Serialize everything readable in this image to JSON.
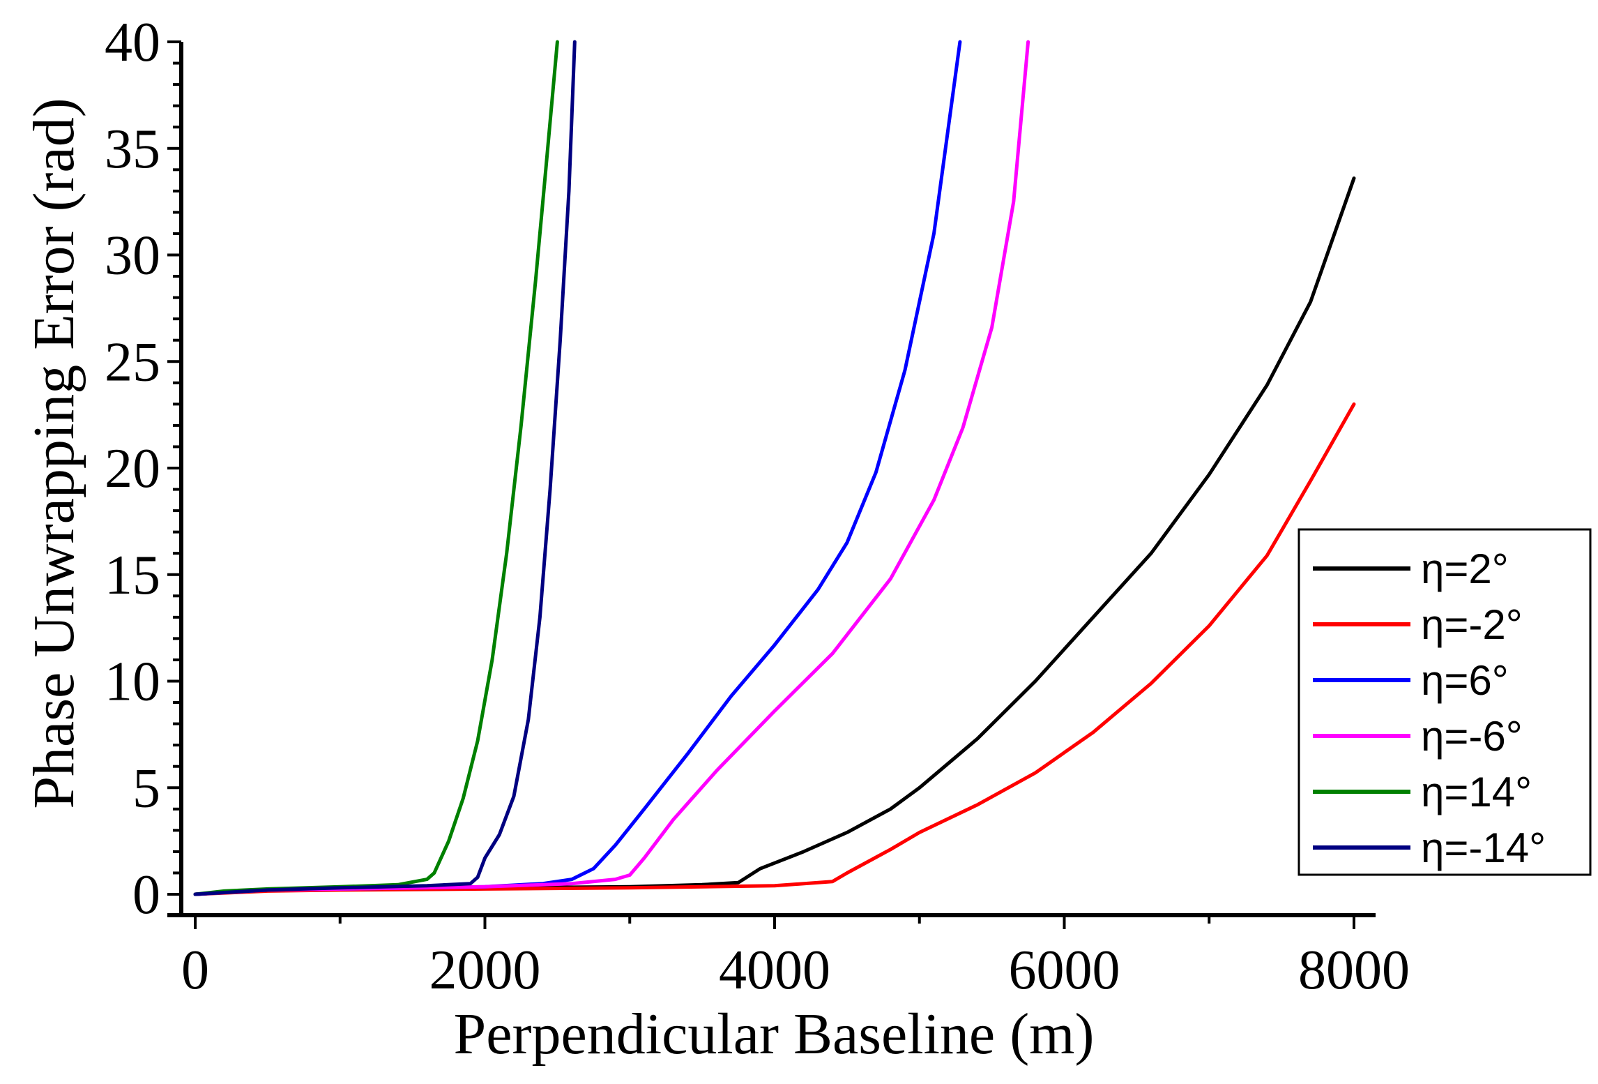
{
  "chart_data": {
    "type": "line",
    "xlabel": "Perpendicular Baseline (m)",
    "ylabel": "Phase Unwrapping Error (rad)",
    "xlim": [
      0,
      8000
    ],
    "ylim": [
      0,
      40
    ],
    "xticks": [
      0,
      2000,
      4000,
      6000,
      8000
    ],
    "yticks": [
      0,
      5,
      10,
      15,
      20,
      25,
      30,
      35,
      40
    ],
    "xtick_labels": [
      "0",
      "2000",
      "4000",
      "6000",
      "8000"
    ],
    "ytick_labels": [
      "0",
      "5",
      "10",
      "15",
      "20",
      "25",
      "30",
      "35",
      "40"
    ],
    "grid": false,
    "legend_position": "bottom-right",
    "series": [
      {
        "name": "η=2°",
        "color": "#000000",
        "points": [
          [
            0,
            0
          ],
          [
            500,
            0.2
          ],
          [
            1000,
            0.25
          ],
          [
            2000,
            0.3
          ],
          [
            3000,
            0.35
          ],
          [
            3500,
            0.45
          ],
          [
            3750,
            0.55
          ],
          [
            3900,
            1.2
          ],
          [
            4200,
            2.0
          ],
          [
            4500,
            2.9
          ],
          [
            4800,
            4.0
          ],
          [
            5000,
            5.0
          ],
          [
            5400,
            7.3
          ],
          [
            5800,
            10.0
          ],
          [
            6200,
            13.0
          ],
          [
            6600,
            16.0
          ],
          [
            7000,
            19.7
          ],
          [
            7400,
            23.9
          ],
          [
            7700,
            27.8
          ],
          [
            8000,
            33.6
          ]
        ]
      },
      {
        "name": "η=-2°",
        "color": "#ff0000",
        "points": [
          [
            0,
            0
          ],
          [
            500,
            0.15
          ],
          [
            1000,
            0.2
          ],
          [
            2000,
            0.25
          ],
          [
            3000,
            0.3
          ],
          [
            4000,
            0.4
          ],
          [
            4400,
            0.6
          ],
          [
            4500,
            1.0
          ],
          [
            4800,
            2.1
          ],
          [
            5000,
            2.9
          ],
          [
            5400,
            4.2
          ],
          [
            5800,
            5.7
          ],
          [
            6200,
            7.6
          ],
          [
            6600,
            9.9
          ],
          [
            7000,
            12.6
          ],
          [
            7400,
            15.9
          ],
          [
            7700,
            19.4
          ],
          [
            8000,
            23.0
          ]
        ]
      },
      {
        "name": "η=6°",
        "color": "#0000ff",
        "points": [
          [
            0,
            0
          ],
          [
            500,
            0.2
          ],
          [
            1000,
            0.25
          ],
          [
            2000,
            0.35
          ],
          [
            2400,
            0.5
          ],
          [
            2600,
            0.7
          ],
          [
            2750,
            1.2
          ],
          [
            2900,
            2.3
          ],
          [
            3100,
            4.0
          ],
          [
            3400,
            6.6
          ],
          [
            3700,
            9.3
          ],
          [
            4000,
            11.7
          ],
          [
            4300,
            14.3
          ],
          [
            4500,
            16.5
          ],
          [
            4700,
            19.8
          ],
          [
            4900,
            24.6
          ],
          [
            5100,
            31.0
          ],
          [
            5280,
            40.0
          ]
        ]
      },
      {
        "name": "η=-6°",
        "color": "#ff00ff",
        "points": [
          [
            0,
            0
          ],
          [
            500,
            0.2
          ],
          [
            1000,
            0.25
          ],
          [
            2000,
            0.35
          ],
          [
            2600,
            0.5
          ],
          [
            2900,
            0.7
          ],
          [
            3000,
            0.9
          ],
          [
            3100,
            1.7
          ],
          [
            3300,
            3.5
          ],
          [
            3600,
            5.8
          ],
          [
            4000,
            8.6
          ],
          [
            4400,
            11.3
          ],
          [
            4800,
            14.8
          ],
          [
            5100,
            18.5
          ],
          [
            5300,
            21.9
          ],
          [
            5500,
            26.6
          ],
          [
            5650,
            32.5
          ],
          [
            5750,
            40.0
          ]
        ]
      },
      {
        "name": "η=14°",
        "color": "#008000",
        "points": [
          [
            0,
            0
          ],
          [
            200,
            0.15
          ],
          [
            500,
            0.25
          ],
          [
            1000,
            0.35
          ],
          [
            1400,
            0.45
          ],
          [
            1600,
            0.7
          ],
          [
            1650,
            1.0
          ],
          [
            1750,
            2.5
          ],
          [
            1850,
            4.5
          ],
          [
            1950,
            7.2
          ],
          [
            2050,
            11.0
          ],
          [
            2150,
            16.0
          ],
          [
            2250,
            22.0
          ],
          [
            2350,
            28.8
          ],
          [
            2420,
            34.0
          ],
          [
            2500,
            40.0
          ]
        ]
      },
      {
        "name": "η=-14°",
        "color": "#000080",
        "points": [
          [
            0,
            0
          ],
          [
            500,
            0.2
          ],
          [
            1000,
            0.3
          ],
          [
            1600,
            0.4
          ],
          [
            1900,
            0.5
          ],
          [
            1950,
            0.8
          ],
          [
            2000,
            1.7
          ],
          [
            2100,
            2.8
          ],
          [
            2200,
            4.6
          ],
          [
            2300,
            8.2
          ],
          [
            2380,
            13.0
          ],
          [
            2450,
            19.0
          ],
          [
            2520,
            26.0
          ],
          [
            2580,
            33.0
          ],
          [
            2620,
            40.0
          ]
        ]
      }
    ]
  }
}
